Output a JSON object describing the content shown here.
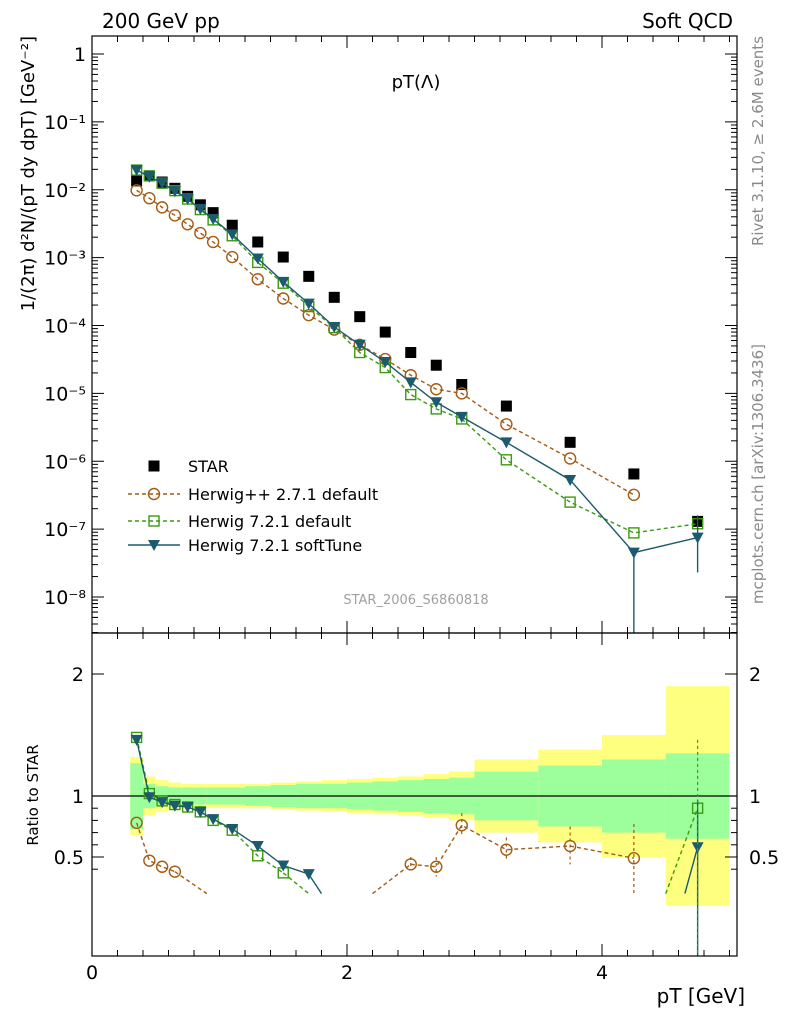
{
  "header": {
    "left": "200 GeV pp",
    "right": "Soft QCD"
  },
  "side_text": {
    "rivet": "Rivet 3.1.10, ≥ 2.6M events",
    "mcplots": "mcplots.cern.ch [arXiv:1306.3436]"
  },
  "watermark": "STAR_2006_S6860818",
  "colors": {
    "star": "#000000",
    "herwigpp": "#a45b12",
    "herwig721": "#3a9a10",
    "softtune": "#1c5a6e",
    "band_inner": "#9cff9c",
    "band_outer": "#ffff7f"
  },
  "chart_data": [
    {
      "type": "scatter",
      "title": "pT(Λ)",
      "ylabel": "1/(2π) d²N/(pT dy dpT) [GeV⁻²]",
      "xlim": [
        0,
        5.2
      ],
      "ylim": [
        3e-09,
        2
      ],
      "yscale": "log",
      "ytick_labels": [
        "1",
        "10⁻¹",
        "10⁻²",
        "10⁻³",
        "10⁻⁴",
        "10⁻⁵",
        "10⁻⁶",
        "10⁻⁷",
        "10⁻⁸"
      ],
      "legend": [
        "STAR",
        "Herwig++ 2.7.1 default",
        "Herwig 7.2.1 default",
        "Herwig 7.2.1 softTune"
      ],
      "series": [
        {
          "name": "STAR",
          "x": [
            0.35,
            0.45,
            0.55,
            0.65,
            0.75,
            0.85,
            0.95,
            1.1,
            1.3,
            1.5,
            1.7,
            1.9,
            2.1,
            2.3,
            2.5,
            2.7,
            2.9,
            3.25,
            3.75,
            4.25,
            4.75
          ],
          "y": [
            0.0135,
            0.016,
            0.013,
            0.0105,
            0.008,
            0.006,
            0.0046,
            0.003,
            0.0017,
            0.00102,
            0.00053,
            0.00026,
            0.000135,
            8e-05,
            4e-05,
            2.6e-05,
            1.35e-05,
            6.5e-06,
            1.9e-06,
            6.5e-07,
            1.3e-07
          ]
        },
        {
          "name": "Herwig++ 2.7.1 default",
          "x": [
            0.35,
            0.45,
            0.55,
            0.65,
            0.75,
            0.85,
            0.95,
            1.1,
            1.3,
            1.5,
            1.7,
            1.9,
            2.1,
            2.3,
            2.5,
            2.7,
            2.9,
            3.25,
            3.75,
            4.25
          ],
          "y": [
            0.0098,
            0.0075,
            0.0055,
            0.0042,
            0.0031,
            0.0023,
            0.0017,
            0.00102,
            0.00048,
            0.00025,
            0.000142,
            8.7e-05,
            5.2e-05,
            3.2e-05,
            1.85e-05,
            1.15e-05,
            1e-05,
            3.5e-06,
            1.1e-06,
            3.2e-07
          ]
        },
        {
          "name": "Herwig 7.2.1 default",
          "x": [
            0.35,
            0.45,
            0.55,
            0.65,
            0.75,
            0.85,
            0.95,
            1.1,
            1.3,
            1.5,
            1.7,
            1.9,
            2.1,
            2.3,
            2.5,
            2.7,
            2.9,
            3.25,
            3.75,
            4.25,
            4.75
          ],
          "y": [
            0.0195,
            0.016,
            0.0125,
            0.0097,
            0.0073,
            0.0051,
            0.0036,
            0.0021,
            0.00085,
            0.00042,
            0.00019,
            9.3e-05,
            4e-05,
            2.4e-05,
            9.6e-06,
            5.9e-06,
            4.2e-06,
            1.05e-06,
            2.5e-07,
            8.8e-08,
            1.2e-07
          ]
        },
        {
          "name": "Herwig 7.2.1 softTune",
          "x": [
            0.35,
            0.45,
            0.55,
            0.65,
            0.75,
            0.85,
            0.95,
            1.1,
            1.3,
            1.5,
            1.7,
            1.9,
            2.1,
            2.3,
            2.5,
            2.7,
            2.9,
            3.25,
            3.75,
            4.25,
            4.75
          ],
          "y": [
            0.0195,
            0.0155,
            0.0125,
            0.0095,
            0.0073,
            0.0052,
            0.0037,
            0.0022,
            0.00097,
            0.00044,
            0.00021,
            9.5e-05,
            5.2e-05,
            2.9e-05,
            1.45e-05,
            7.4e-06,
            4.5e-06,
            1.9e-06,
            5.3e-07,
            4.5e-08,
            7.5e-08
          ]
        }
      ]
    },
    {
      "type": "scatter",
      "ylabel": "Ratio to STAR",
      "xlabel": "pT [GeV]",
      "xlim": [
        0,
        5.2
      ],
      "ylim": [
        0.33,
        2.3
      ],
      "xtick_labels": [
        "0",
        "2",
        "4"
      ],
      "ytick_labels": [
        "0.5",
        "1",
        "2"
      ],
      "bands": {
        "bin_edges": [
          0.3,
          0.4,
          0.5,
          0.6,
          0.7,
          0.8,
          0.9,
          1.0,
          1.2,
          1.4,
          1.6,
          1.8,
          2.0,
          2.2,
          2.4,
          2.6,
          2.8,
          3.0,
          3.5,
          4.0,
          4.5,
          5.0
        ],
        "inner": [
          0.27,
          0.1,
          0.08,
          0.07,
          0.07,
          0.07,
          0.07,
          0.07,
          0.08,
          0.09,
          0.1,
          0.1,
          0.11,
          0.12,
          0.13,
          0.14,
          0.15,
          0.2,
          0.25,
          0.3,
          0.35
        ],
        "outer": [
          0.32,
          0.16,
          0.13,
          0.11,
          0.1,
          0.1,
          0.1,
          0.1,
          0.1,
          0.11,
          0.12,
          0.13,
          0.14,
          0.15,
          0.16,
          0.18,
          0.2,
          0.3,
          0.38,
          0.5,
          0.9
        ]
      },
      "series": [
        {
          "name": "Herwig++ 2.7.1 default",
          "x": [
            0.35,
            0.45,
            0.55,
            0.65,
            2.5,
            2.7,
            2.9,
            3.25,
            3.75,
            4.25
          ],
          "y": [
            0.78,
            0.47,
            0.42,
            0.38,
            0.44,
            0.42,
            0.76,
            0.56,
            0.59,
            0.49
          ]
        },
        {
          "name": "Herwig 7.2.1 default",
          "x": [
            0.35,
            0.45,
            0.55,
            0.65,
            0.75,
            0.85,
            0.95,
            1.1,
            1.3,
            1.5,
            4.75
          ],
          "y": [
            1.48,
            1.02,
            0.96,
            0.93,
            0.91,
            0.87,
            0.8,
            0.72,
            0.51,
            0.37,
            0.9
          ]
        },
        {
          "name": "Herwig 7.2.1 softTune",
          "x": [
            0.35,
            0.45,
            0.55,
            0.65,
            0.75,
            0.85,
            0.95,
            1.1,
            1.3,
            1.5,
            1.7,
            4.75
          ],
          "y": [
            1.46,
            0.99,
            0.95,
            0.92,
            0.91,
            0.87,
            0.81,
            0.73,
            0.59,
            0.43,
            0.36,
            0.58
          ]
        }
      ]
    }
  ]
}
